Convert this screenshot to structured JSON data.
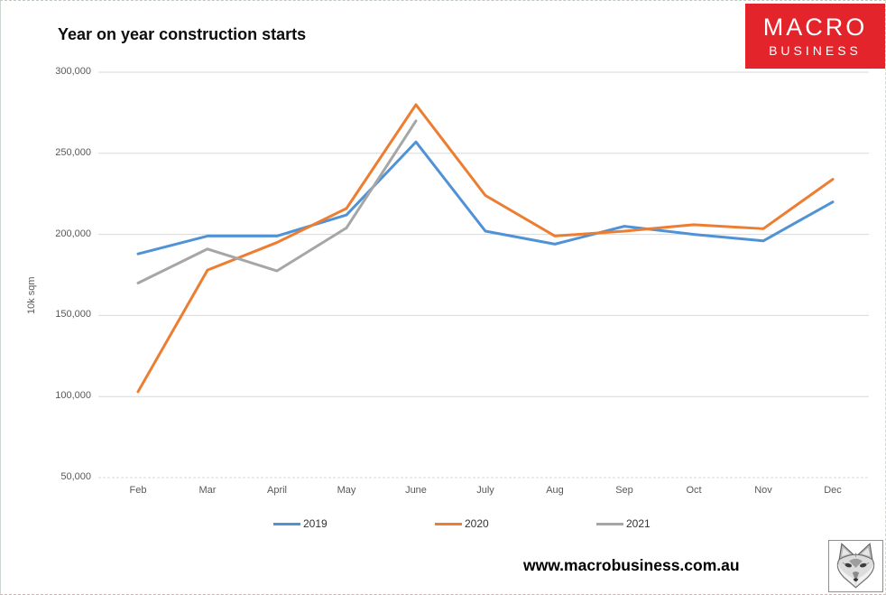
{
  "logo": {
    "line1": "MACRO",
    "line2": "BUSINESS",
    "bg_color": "#e3242b",
    "text_color": "#ffffff"
  },
  "footer": {
    "url": "www.macrobusiness.com.au",
    "logo_icon": "fox-head-sketch"
  },
  "chart_data": {
    "type": "line",
    "title": "Year on year construction starts",
    "xlabel": "",
    "ylabel": "10k sqm",
    "ylim": [
      50000,
      300000
    ],
    "grid": true,
    "legend_position": "bottom",
    "categories": [
      "Feb",
      "Mar",
      "April",
      "May",
      "June",
      "July",
      "Aug",
      "Sep",
      "Oct",
      "Nov",
      "Dec"
    ],
    "y_ticks": [
      {
        "value": 300000,
        "label": "300,000"
      },
      {
        "value": 250000,
        "label": "250,000"
      },
      {
        "value": 200000,
        "label": "200,000"
      },
      {
        "value": 150000,
        "label": "150,000"
      },
      {
        "value": 100000,
        "label": "100,000"
      },
      {
        "value": 50000,
        "label": "50,000"
      }
    ],
    "series": [
      {
        "name": "2019",
        "color": "#4f93d6",
        "values": [
          188000,
          199000,
          199000,
          212000,
          257000,
          202000,
          194000,
          205000,
          200000,
          196000,
          220000
        ]
      },
      {
        "name": "2020",
        "color": "#ed7d31",
        "values": [
          103000,
          178000,
          195000,
          216000,
          280000,
          224000,
          199000,
          202000,
          206000,
          203500,
          234000
        ]
      },
      {
        "name": "2021",
        "color": "#a6a6a6",
        "values": [
          170000,
          191000,
          177500,
          204000,
          270000
        ]
      }
    ],
    "axis_color": "#d9d9d9",
    "tick_label_color": "#595959"
  }
}
